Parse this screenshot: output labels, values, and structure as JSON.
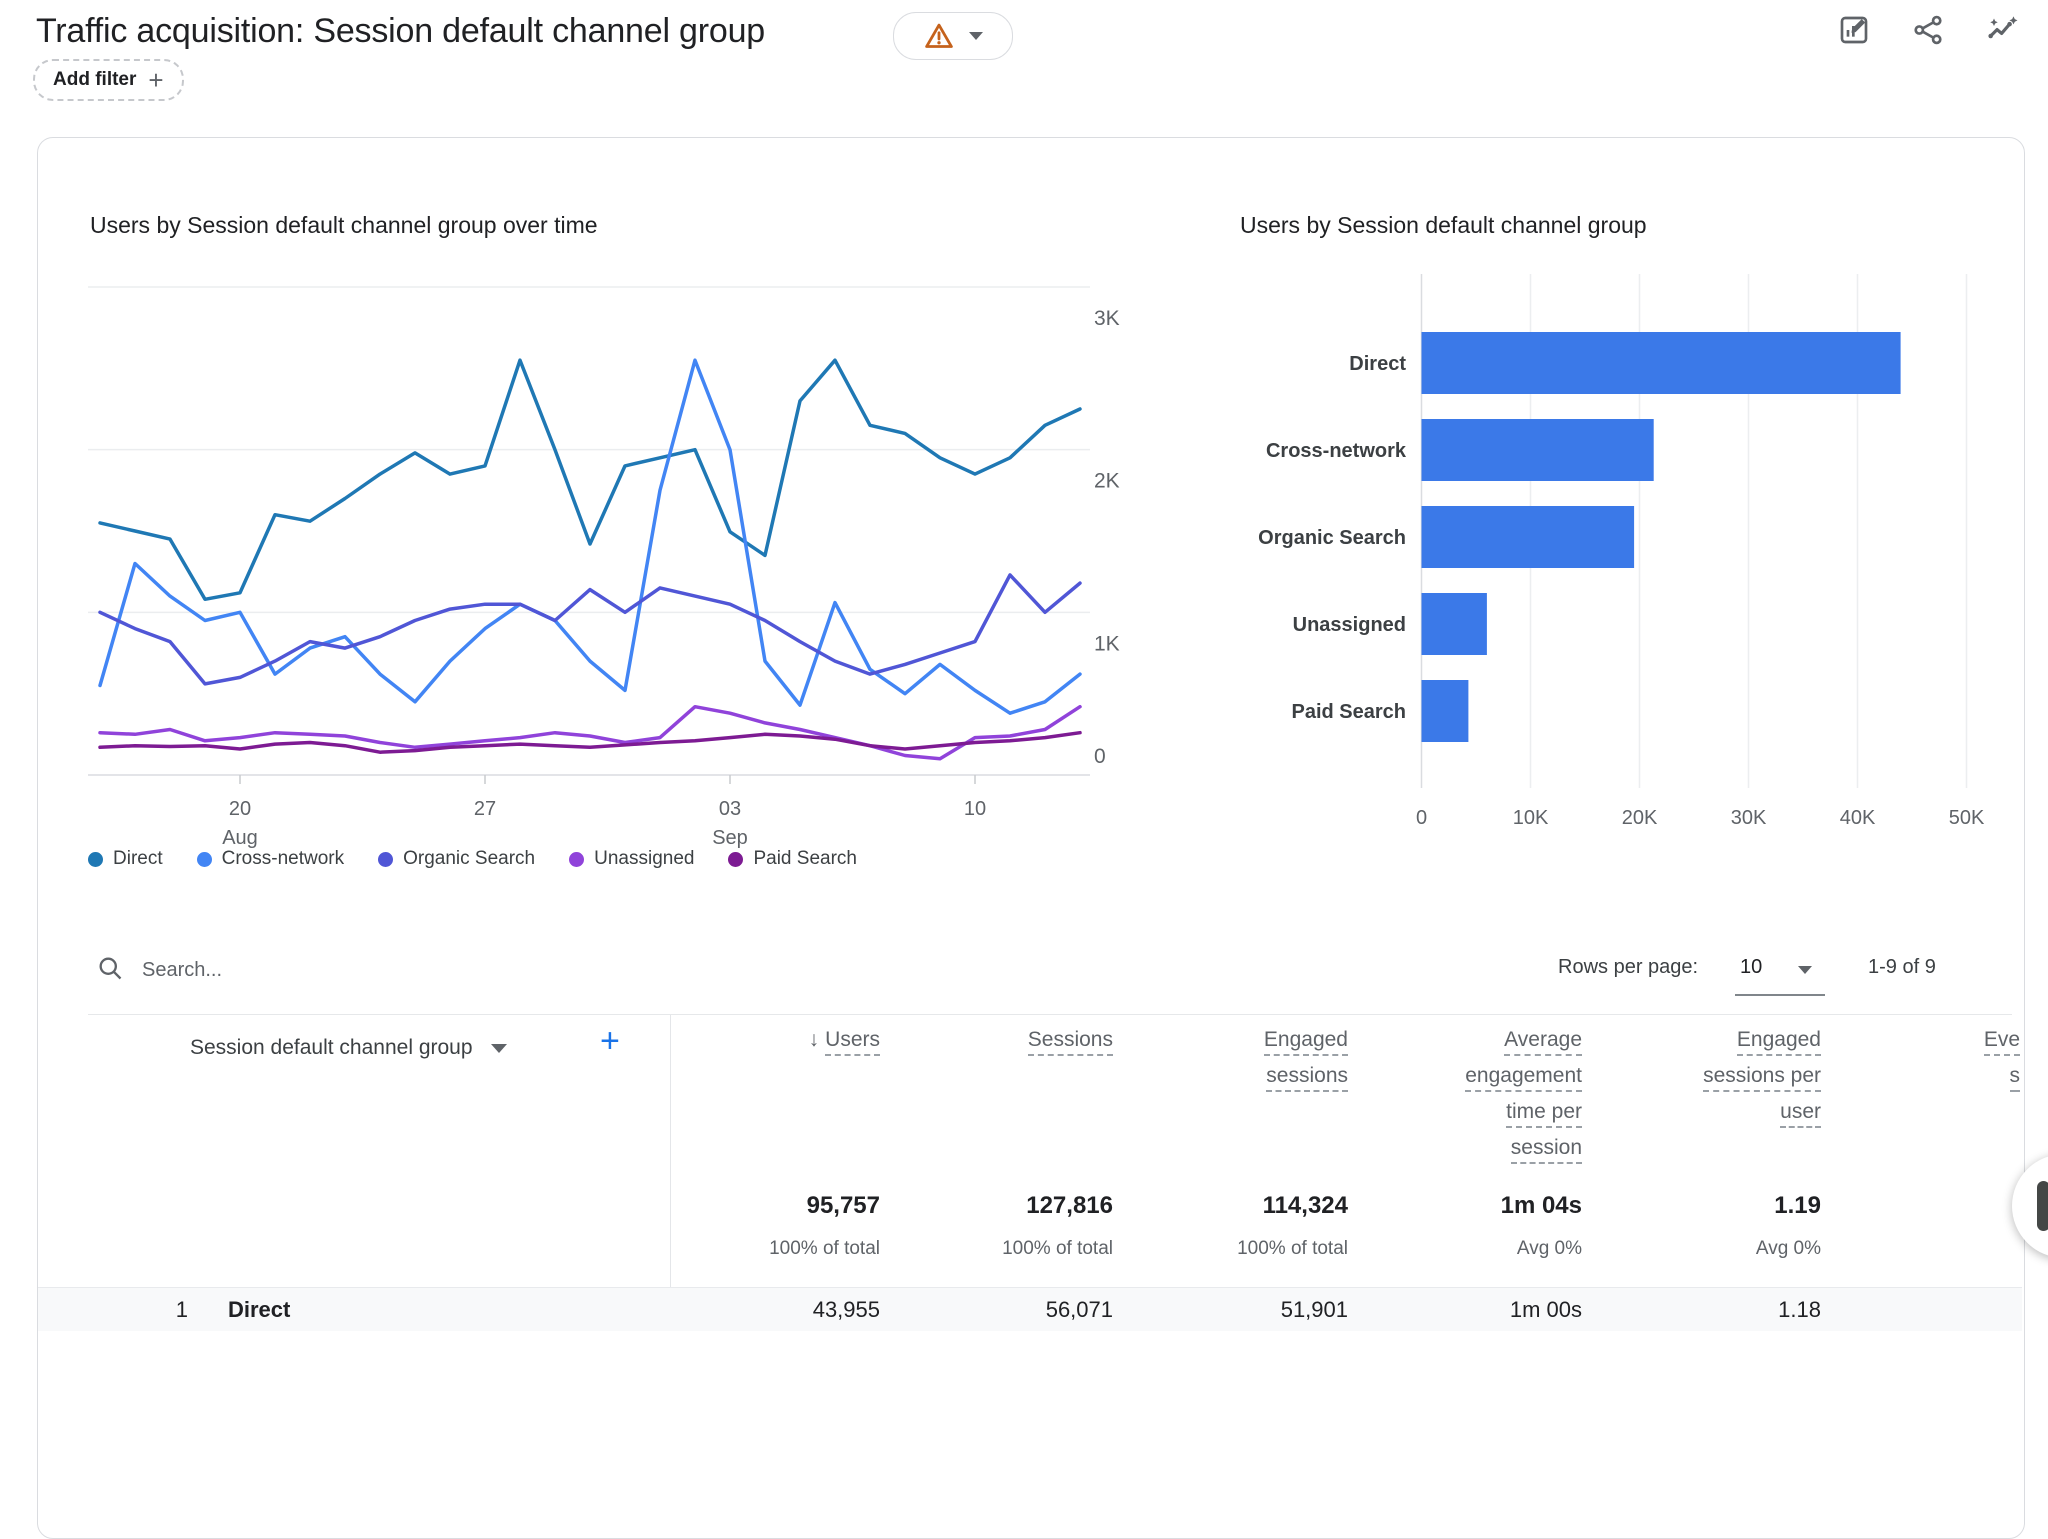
{
  "header": {
    "title": "Traffic acquisition: Session default channel group",
    "warning_button": {
      "icon": "warning-triangle-icon",
      "caret_icon": "chevron-down-icon"
    }
  },
  "toolbar": {
    "icons": [
      "edit-report-icon",
      "share-icon",
      "insights-icon"
    ]
  },
  "filter_bar": {
    "add_filter_label": "Add filter",
    "plus_icon": "plus-icon"
  },
  "colors": {
    "accent_blue": "#1a73e8",
    "bar_blue": "#3b79e8",
    "warning_orange": "#c5621c",
    "text_primary": "#202124",
    "text_secondary": "#5f6368"
  },
  "chart_data": [
    {
      "type": "line",
      "title": "Users by Session default channel group over time",
      "ylabel": "",
      "xlabel": "",
      "ylim": [
        0,
        3000
      ],
      "grid": true,
      "legend_position": "bottom",
      "n_points": 29,
      "y_ticks": [
        {
          "value": 3000,
          "label": "3K"
        },
        {
          "value": 2000,
          "label": "2K"
        },
        {
          "value": 1000,
          "label": "1K"
        },
        {
          "value": 0,
          "label": "0"
        }
      ],
      "x_ticks": [
        {
          "index": 4,
          "label": "20",
          "sublabel": "Aug"
        },
        {
          "index": 11,
          "label": "27",
          "sublabel": ""
        },
        {
          "index": 18,
          "label": "03",
          "sublabel": "Sep"
        },
        {
          "index": 25,
          "label": "10",
          "sublabel": ""
        }
      ],
      "series": [
        {
          "name": "Direct",
          "color": "#1f78b4",
          "values": [
            1550,
            1500,
            1450,
            1080,
            1120,
            1600,
            1560,
            1700,
            1850,
            1980,
            1850,
            1900,
            2550,
            2000,
            1420,
            1900,
            1950,
            2000,
            1495,
            1350,
            2300,
            2550,
            2150,
            2100,
            1950,
            1850,
            1950,
            2150,
            2250
          ]
        },
        {
          "name": "Cross-network",
          "color": "#4285f4",
          "values": [
            550,
            1300,
            1100,
            950,
            1000,
            620,
            780,
            850,
            620,
            450,
            700,
            900,
            1050,
            950,
            700,
            520,
            1750,
            2550,
            2000,
            700,
            430,
            1060,
            650,
            500,
            680,
            520,
            380,
            450,
            620
          ]
        },
        {
          "name": "Organic Search",
          "color": "#5056d6",
          "values": [
            1000,
            900,
            820,
            560,
            600,
            700,
            820,
            780,
            850,
            950,
            1020,
            1050,
            1050,
            950,
            1140,
            1000,
            1150,
            1100,
            1050,
            950,
            820,
            700,
            620,
            680,
            750,
            820,
            1230,
            1000,
            1180
          ]
        },
        {
          "name": "Unassigned",
          "color": "#9043da",
          "values": [
            260,
            250,
            280,
            210,
            230,
            260,
            250,
            240,
            200,
            170,
            190,
            210,
            230,
            260,
            240,
            200,
            230,
            420,
            380,
            320,
            280,
            230,
            180,
            120,
            100,
            230,
            240,
            280,
            420
          ]
        },
        {
          "name": "Paid Search",
          "color": "#7d1b93",
          "values": [
            170,
            180,
            175,
            180,
            160,
            190,
            200,
            180,
            140,
            150,
            170,
            180,
            190,
            180,
            170,
            185,
            200,
            210,
            230,
            250,
            240,
            220,
            180,
            160,
            180,
            200,
            210,
            230,
            260
          ]
        }
      ]
    },
    {
      "type": "bar",
      "orientation": "horizontal",
      "title": "Users by Session default channel group",
      "categories": [
        "Direct",
        "Cross-network",
        "Organic Search",
        "Unassigned",
        "Paid Search"
      ],
      "values": [
        43955,
        21300,
        19500,
        6000,
        4300
      ],
      "bar_color": "#3b79e8",
      "xlim": [
        0,
        50000
      ],
      "grid": true,
      "x_ticks": [
        {
          "value": 0,
          "label": "0"
        },
        {
          "value": 10000,
          "label": "10K"
        },
        {
          "value": 20000,
          "label": "20K"
        },
        {
          "value": 30000,
          "label": "30K"
        },
        {
          "value": 40000,
          "label": "40K"
        },
        {
          "value": 50000,
          "label": "50K"
        }
      ]
    }
  ],
  "table_controls": {
    "search_placeholder": "Search...",
    "search_icon": "search-icon",
    "rows_per_page_label": "Rows per page:",
    "rows_per_page_value": "10",
    "pagination_range": "1-9 of 9"
  },
  "table": {
    "dimension_header": "Session default channel group",
    "columns": [
      {
        "lines": [
          "Users"
        ],
        "sorted": true
      },
      {
        "lines": [
          "Sessions"
        ]
      },
      {
        "lines": [
          "Engaged",
          "sessions"
        ]
      },
      {
        "lines": [
          "Average",
          "engagement",
          "time per",
          "session"
        ]
      },
      {
        "lines": [
          "Engaged",
          "sessions per",
          "user"
        ]
      },
      {
        "lines": [
          "Eve",
          "s"
        ],
        "truncated": true
      }
    ],
    "totals": [
      {
        "value": "95,757",
        "sub": "100% of total"
      },
      {
        "value": "127,816",
        "sub": "100% of total"
      },
      {
        "value": "114,324",
        "sub": "100% of total"
      },
      {
        "value": "1m 04s",
        "sub": "Avg 0%"
      },
      {
        "value": "1.19",
        "sub": "Avg 0%"
      },
      {
        "value": "",
        "sub": ""
      }
    ],
    "rows": [
      {
        "index": "1",
        "dimension": "Direct",
        "cells": [
          "43,955",
          "56,071",
          "51,901",
          "1m 00s",
          "1.18",
          ""
        ]
      }
    ]
  }
}
